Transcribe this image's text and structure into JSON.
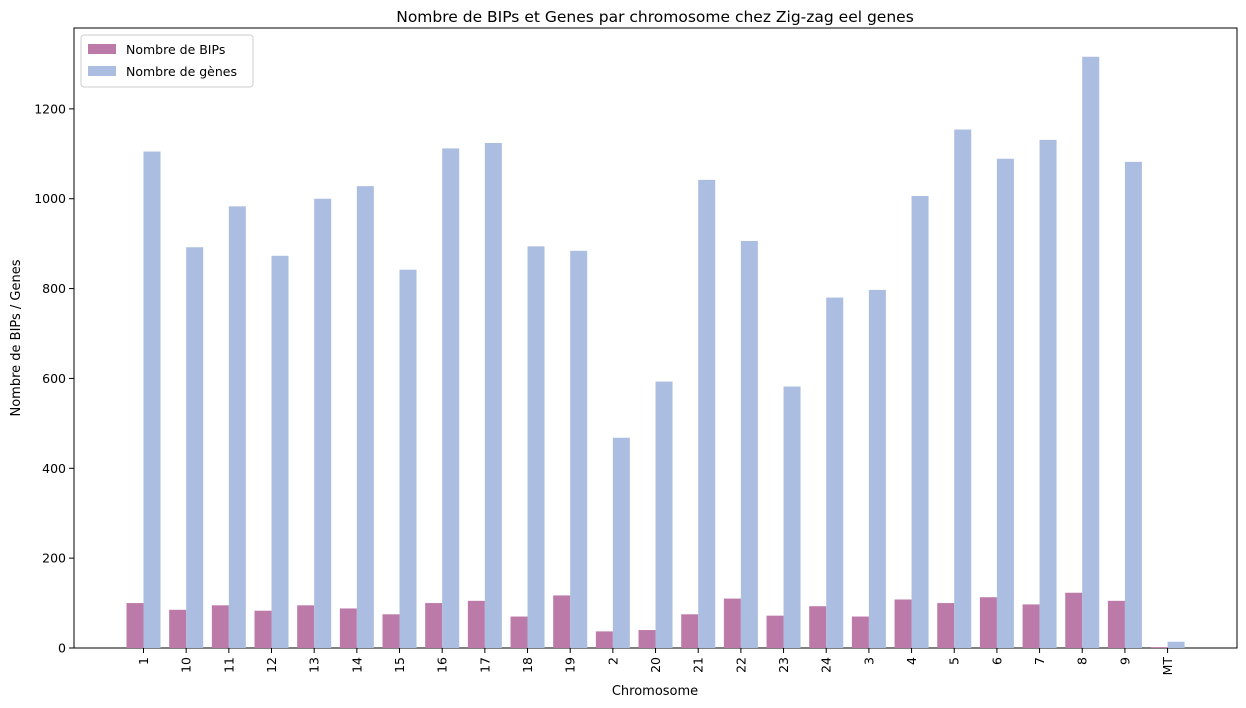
{
  "chart_data": {
    "type": "bar",
    "title": "Nombre de BIPs et Genes par chromosome chez Zig-zag eel genes",
    "xlabel": "Chromosome",
    "ylabel": "Nombre de BIPs / Genes",
    "categories": [
      "1",
      "10",
      "11",
      "12",
      "13",
      "14",
      "15",
      "16",
      "17",
      "18",
      "19",
      "2",
      "20",
      "21",
      "22",
      "23",
      "24",
      "3",
      "4",
      "5",
      "6",
      "7",
      "8",
      "9",
      "MT"
    ],
    "series": [
      {
        "name": "Nombre de BIPs",
        "color": "#bc7aa8",
        "values": [
          100,
          85,
          95,
          83,
          95,
          88,
          75,
          100,
          105,
          70,
          117,
          37,
          40,
          75,
          110,
          72,
          93,
          70,
          108,
          100,
          113,
          97,
          123,
          105,
          2
        ]
      },
      {
        "name": "Nombre de gènes",
        "color": "#abbde0",
        "values": [
          1105,
          892,
          983,
          873,
          1000,
          1028,
          842,
          1112,
          1124,
          894,
          884,
          468,
          593,
          1042,
          906,
          582,
          780,
          797,
          1006,
          1154,
          1089,
          1131,
          1316,
          1082,
          14
        ]
      }
    ],
    "ylim": [
      0,
      1380
    ],
    "yticks": [
      0,
      200,
      400,
      600,
      800,
      1000,
      1200
    ],
    "legend_position": "top-left",
    "grid": false
  }
}
